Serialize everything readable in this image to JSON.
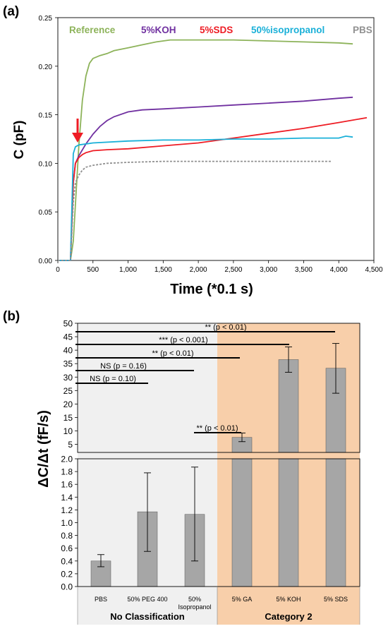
{
  "panel_a": {
    "panel_label": "(a)",
    "ylabel": "C (pF)",
    "xlabel": "Time (*0.1 s)",
    "yticks": [
      "0.00",
      "0.05",
      "0.10",
      "0.15",
      "0.20",
      "0.25"
    ],
    "xticks": [
      "0",
      "500",
      "1,000",
      "1,500",
      "2,000",
      "2,500",
      "3,000",
      "3,500",
      "4,000",
      "4,500"
    ],
    "legend": [
      {
        "label": "Reference",
        "color": "#8db35a"
      },
      {
        "label": "5%KOH",
        "color": "#7030a0"
      },
      {
        "label": "5%SDS",
        "color": "#ee1c24"
      },
      {
        "label": "50%isopropanol",
        "color": "#1ab0d8"
      },
      {
        "label": "PBS",
        "color": "#909090"
      }
    ]
  },
  "panel_b": {
    "panel_label": "(b)",
    "ylabel": "ΔC/Δt (fF/s)",
    "upper_yticks": [
      "5",
      "10",
      "15",
      "20",
      "25",
      "30",
      "35",
      "40",
      "45",
      "50"
    ],
    "lower_yticks": [
      "0.0",
      "0.2",
      "0.4",
      "0.6",
      "0.8",
      "1.0",
      "1.2",
      "1.4",
      "1.6",
      "1.8",
      "2.0"
    ],
    "categories": [
      "PBS",
      "50% PEG 400",
      "50% Isopropanol",
      "5% GA",
      "5% KOH",
      "5% SDS"
    ],
    "category_lines": [
      [
        "PBS"
      ],
      [
        "50% PEG 400"
      ],
      [
        "50%",
        "Isopropanol"
      ],
      [
        "5% GA"
      ],
      [
        "5% KOH"
      ],
      [
        "5% SDS"
      ]
    ],
    "group_labels": [
      "No Classification",
      "Category 2"
    ],
    "colors": {
      "bar": "#a6a6a6",
      "no_class_bg": "#f0f0f0",
      "cat2_bg": "#f8cfaa"
    },
    "significance": [
      {
        "label": "** (p < 0.01)"
      },
      {
        "label": "*** (p < 0.001)"
      },
      {
        "label": "** (p < 0.01)"
      },
      {
        "label": "NS (p = 0.16)"
      },
      {
        "label": "NS (p = 0.10)"
      },
      {
        "label": "** (p < 0.01)"
      }
    ]
  },
  "chart_data": [
    {
      "type": "line",
      "xlabel": "Time (*0.1 s)",
      "ylabel": "C (pF)",
      "xlim": [
        0,
        4500
      ],
      "ylim": [
        0,
        0.25
      ],
      "grid": false,
      "legend_position": "top",
      "series": [
        {
          "name": "Reference",
          "color": "#8db35a",
          "x": [
            0,
            180,
            220,
            260,
            300,
            350,
            400,
            450,
            500,
            600,
            700,
            800,
            1000,
            1200,
            1400,
            1600,
            2000,
            2500,
            3000,
            3500,
            4000,
            4200
          ],
          "y": [
            0,
            0,
            0.02,
            0.07,
            0.12,
            0.165,
            0.19,
            0.203,
            0.208,
            0.211,
            0.213,
            0.216,
            0.219,
            0.222,
            0.225,
            0.227,
            0.227,
            0.227,
            0.226,
            0.225,
            0.224,
            0.223
          ]
        },
        {
          "name": "5%KOH",
          "color": "#7030a0",
          "x": [
            0,
            180,
            220,
            250,
            300,
            400,
            500,
            600,
            700,
            800,
            1000,
            1200,
            1500,
            2000,
            2500,
            3000,
            3500,
            4000,
            4200
          ],
          "y": [
            0,
            0,
            0.08,
            0.1,
            0.108,
            0.12,
            0.13,
            0.138,
            0.144,
            0.148,
            0.153,
            0.155,
            0.156,
            0.158,
            0.16,
            0.162,
            0.164,
            0.167,
            0.168
          ]
        },
        {
          "name": "5%SDS",
          "color": "#ee1c24",
          "x": [
            0,
            180,
            220,
            250,
            300,
            350,
            400,
            500,
            700,
            1000,
            1500,
            2000,
            2500,
            3000,
            3500,
            4000,
            4400
          ],
          "y": [
            0,
            0,
            0.08,
            0.1,
            0.106,
            0.109,
            0.111,
            0.113,
            0.114,
            0.115,
            0.118,
            0.121,
            0.126,
            0.131,
            0.136,
            0.142,
            0.147
          ]
        },
        {
          "name": "50%isopropanol",
          "color": "#1ab0d8",
          "x": [
            0,
            180,
            220,
            250,
            300,
            500,
            1000,
            1500,
            2000,
            2500,
            3000,
            3500,
            4000,
            4100,
            4200
          ],
          "y": [
            0,
            0,
            0.11,
            0.117,
            0.119,
            0.121,
            0.123,
            0.124,
            0.124,
            0.125,
            0.125,
            0.126,
            0.126,
            0.128,
            0.127
          ]
        },
        {
          "name": "PBS",
          "color": "#909090",
          "x": [
            0,
            180,
            220,
            250,
            300,
            350,
            400,
            500,
            700,
            1000,
            1500,
            2000,
            2500,
            3000,
            3500,
            3900
          ],
          "y": [
            0,
            0,
            0.06,
            0.08,
            0.088,
            0.093,
            0.096,
            0.098,
            0.1,
            0.101,
            0.102,
            0.102,
            0.102,
            0.102,
            0.102,
            0.102
          ]
        }
      ]
    },
    {
      "type": "bar",
      "ylabel": "ΔC/Δt (fF/s)",
      "categories": [
        "PBS",
        "50% PEG 400",
        "50% Isopropanol",
        "5% GA",
        "5% KOH",
        "5% SDS"
      ],
      "values": [
        0.4,
        1.17,
        1.13,
        7.6,
        36.5,
        33.3
      ],
      "error_low": [
        0.31,
        0.55,
        0.4,
        6.0,
        31.8,
        24.0
      ],
      "error_high": [
        0.5,
        1.78,
        1.87,
        9.2,
        41.2,
        42.5
      ],
      "axis_break": true,
      "lower_ylim": [
        0,
        2.0
      ],
      "upper_ylim": [
        2.0,
        50
      ]
    }
  ]
}
